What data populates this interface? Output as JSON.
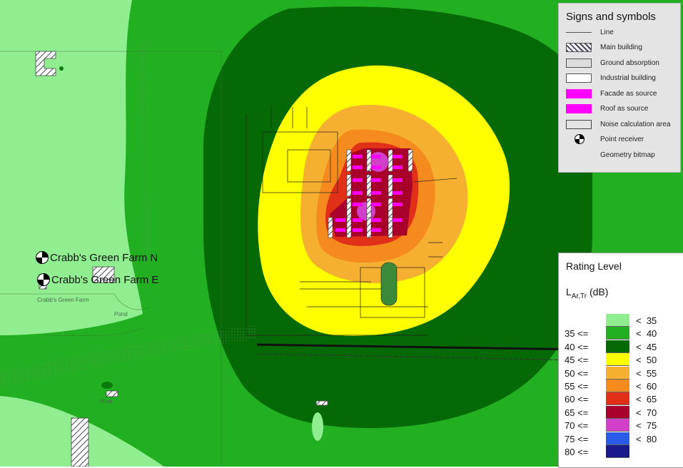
{
  "receivers": [
    {
      "label": "Crabb's Green Farm N"
    },
    {
      "label": "Crabb's Green Farm E"
    }
  ],
  "map_labels": {
    "place_small": "Crabb's Green Farm",
    "pond": "Pond",
    "moat": "Moat"
  },
  "legend_symbols": {
    "title": "Signs and symbols",
    "items": [
      {
        "label": "Line",
        "icon": "line-icon"
      },
      {
        "label": "Main building",
        "icon": "hatched-swatch"
      },
      {
        "label": "Ground absorption",
        "icon": "grey-swatch"
      },
      {
        "label": "Industrial building",
        "icon": "white-swatch"
      },
      {
        "label": "Facade as source",
        "icon": "magenta-swatch",
        "color": "#ff00ff"
      },
      {
        "label": "Roof as source",
        "icon": "magenta-swatch",
        "color": "#ff00ff"
      },
      {
        "label": "Noise calculation area",
        "icon": "outline-swatch"
      },
      {
        "label": "Point receiver",
        "icon": "point-receiver-icon"
      },
      {
        "label": "Geometry bitmap",
        "icon": ""
      }
    ]
  },
  "legend_rating": {
    "title": "Rating Level",
    "unit_main": "L",
    "unit_sub": "Ar,Tr",
    "unit_rest": " (dB)",
    "bands": [
      {
        "lo": "",
        "hi": "<  35",
        "color": "#90ee90"
      },
      {
        "lo": "35 <=",
        "hi": "<  40",
        "color": "#22b022"
      },
      {
        "lo": "40 <=",
        "hi": "<  45",
        "color": "#056a05"
      },
      {
        "lo": "45 <=",
        "hi": "<  50",
        "color": "#ffff00"
      },
      {
        "lo": "50 <=",
        "hi": "<  55",
        "color": "#f5b031"
      },
      {
        "lo": "55 <=",
        "hi": "<  60",
        "color": "#f58a1e"
      },
      {
        "lo": "60 <=",
        "hi": "<  65",
        "color": "#e03018"
      },
      {
        "lo": "65 <=",
        "hi": "<  70",
        "color": "#a8002a"
      },
      {
        "lo": "70 <=",
        "hi": "<  75",
        "color": "#d040c8"
      },
      {
        "lo": "75 <=",
        "hi": "<  80",
        "color": "#2a5ae8"
      },
      {
        "lo": "80 <=",
        "hi": "",
        "color": "#1a1a8c"
      }
    ]
  }
}
